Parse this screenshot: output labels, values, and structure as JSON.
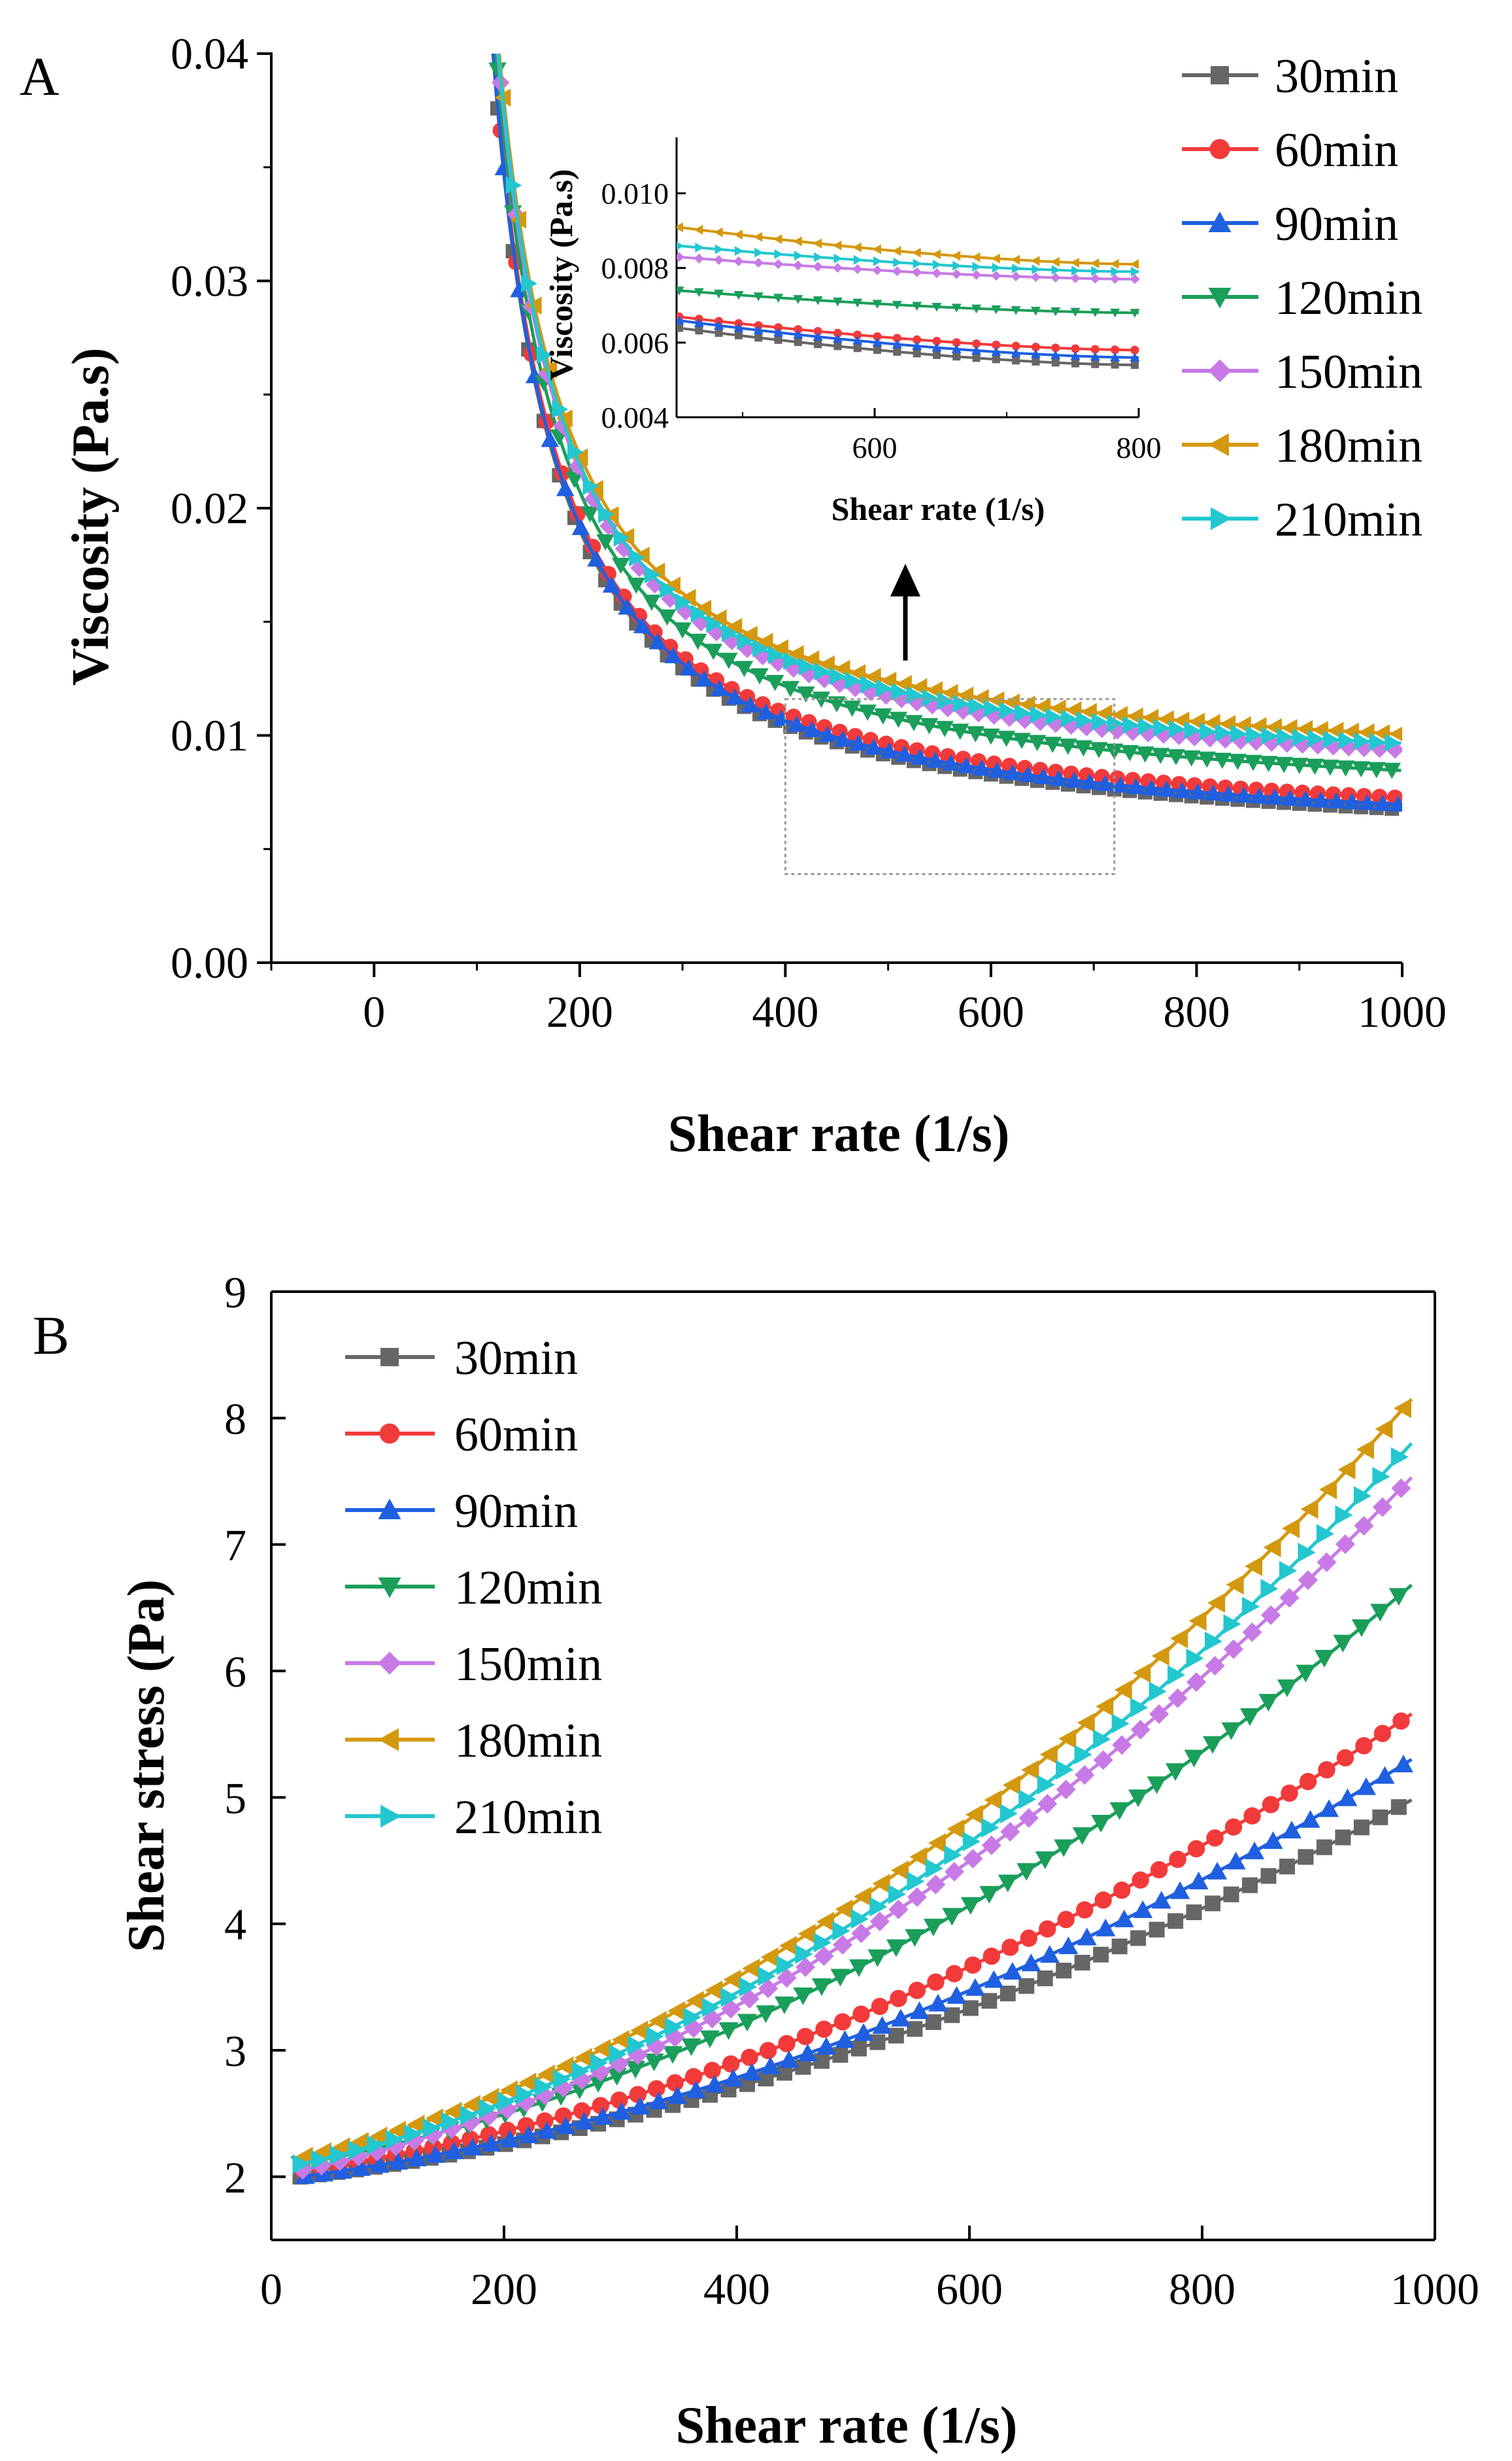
{
  "chart_data": [
    {
      "panel_label": "A",
      "type": "line",
      "xlabel": "Shear rate (1/s)",
      "ylabel": "Viscosity (Pa.s)",
      "xlim": [
        -100,
        1000
      ],
      "ylim": [
        0,
        0.04
      ],
      "xticks": [
        "0",
        "200",
        "400",
        "600",
        "800",
        "1000"
      ],
      "yticks": [
        "0.00",
        "0.01",
        "0.02",
        "0.03",
        "0.04"
      ],
      "xtick_values": [
        0,
        200,
        400,
        600,
        800,
        1000
      ],
      "ytick_values": [
        0,
        0.01,
        0.02,
        0.03,
        0.04
      ],
      "legend_position": "top-right",
      "x_range": [
        60,
        1000
      ],
      "series": [
        {
          "name": "30min",
          "color": "#666666",
          "marker": "square",
          "plateau": 0.0049
        },
        {
          "name": "60min",
          "color": "#f23a3a",
          "marker": "circle",
          "plateau": 0.0054
        },
        {
          "name": "90min",
          "color": "#1f5fe0",
          "marker": "triangle-up",
          "plateau": 0.0051
        },
        {
          "name": "120min",
          "color": "#1a9e5a",
          "marker": "triangle-down",
          "plateau": 0.0066
        },
        {
          "name": "150min",
          "color": "#c77ae6",
          "marker": "diamond",
          "plateau": 0.0075
        },
        {
          "name": "180min",
          "color": "#d4980e",
          "marker": "triangle-left",
          "plateau": 0.0082
        },
        {
          "name": "210min",
          "color": "#22c7cf",
          "marker": "triangle-right",
          "plateau": 0.0078
        }
      ],
      "zoom_box": {
        "x": [
          400,
          720
        ],
        "y": [
          0.0039,
          0.0116
        ]
      },
      "inset": {
        "xlabel": "Shear rate (1/s)",
        "ylabel": "Viscosity (Pa.s)",
        "xlim": [
          450,
          800
        ],
        "ylim": [
          0.004,
          0.0115
        ],
        "xticks": [
          "600",
          "800"
        ],
        "xtick_values": [
          600,
          800
        ],
        "yticks": [
          "0.004",
          "0.006",
          "0.008",
          "0.010"
        ],
        "ytick_values": [
          0.004,
          0.006,
          0.008,
          0.01
        ],
        "series": [
          {
            "name": "30min",
            "values_at_450": 0.0064,
            "values_at_800": 0.0054
          },
          {
            "name": "60min",
            "values_at_450": 0.0067,
            "values_at_800": 0.0058
          },
          {
            "name": "90min",
            "values_at_450": 0.0066,
            "values_at_800": 0.0056
          },
          {
            "name": "120min",
            "values_at_450": 0.0074,
            "values_at_800": 0.0068
          },
          {
            "name": "150min",
            "values_at_450": 0.0083,
            "values_at_800": 0.0077
          },
          {
            "name": "180min",
            "values_at_450": 0.0091,
            "values_at_800": 0.0081
          },
          {
            "name": "210min",
            "values_at_450": 0.0086,
            "values_at_800": 0.0079
          }
        ]
      }
    },
    {
      "panel_label": "B",
      "type": "line",
      "xlabel": "Shear rate (1/s)",
      "ylabel": "Shear stress (Pa)",
      "xlim": [
        0,
        1000
      ],
      "ylim": [
        1.5,
        9
      ],
      "xticks": [
        "0",
        "200",
        "400",
        "600",
        "800",
        "1000"
      ],
      "yticks": [
        "2",
        "3",
        "4",
        "5",
        "6",
        "7",
        "8",
        "9"
      ],
      "xtick_values": [
        0,
        200,
        400,
        600,
        800,
        1000
      ],
      "ytick_values": [
        2,
        3,
        4,
        5,
        6,
        7,
        8,
        9
      ],
      "legend_position": "top-left",
      "x_range": [
        25,
        980
      ],
      "series": [
        {
          "name": "30min",
          "color": "#666666",
          "marker": "square",
          "y_start": 2.0,
          "y_end": 4.98
        },
        {
          "name": "60min",
          "color": "#f23a3a",
          "marker": "circle",
          "y_start": 2.05,
          "y_end": 5.66
        },
        {
          "name": "90min",
          "color": "#1f5fe0",
          "marker": "triangle-up",
          "y_start": 2.0,
          "y_end": 5.3
        },
        {
          "name": "120min",
          "color": "#1a9e5a",
          "marker": "triangle-down",
          "y_start": 2.1,
          "y_end": 6.68
        },
        {
          "name": "150min",
          "color": "#c77ae6",
          "marker": "diamond",
          "y_start": 2.05,
          "y_end": 7.53
        },
        {
          "name": "180min",
          "color": "#d4980e",
          "marker": "triangle-left",
          "y_start": 2.15,
          "y_end": 8.15
        },
        {
          "name": "210min",
          "color": "#22c7cf",
          "marker": "triangle-right",
          "y_start": 2.1,
          "y_end": 7.8
        }
      ]
    }
  ]
}
